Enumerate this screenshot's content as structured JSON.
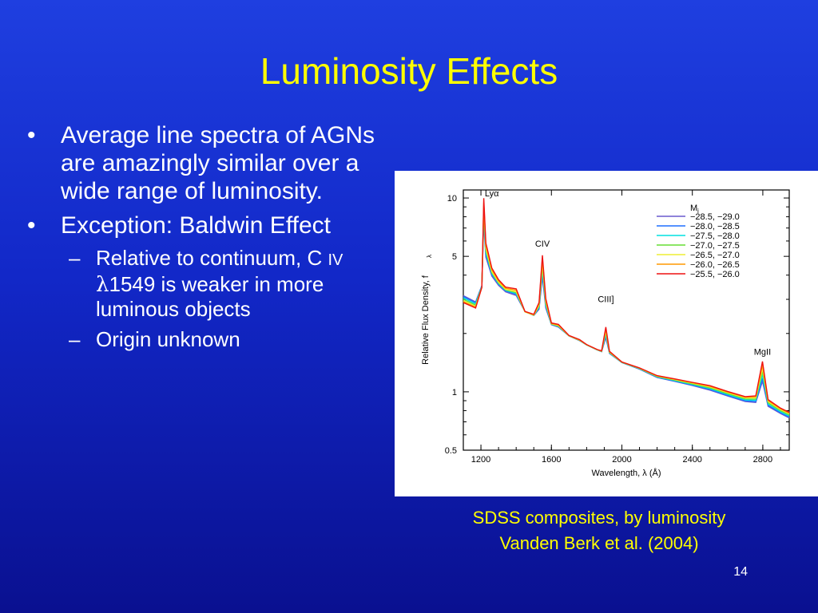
{
  "slide": {
    "title": "Luminosity Effects",
    "page_number": "14"
  },
  "bullets": [
    {
      "text": "Average line spectra of AGNs are amazingly similar over a wide range of luminosity."
    },
    {
      "text": "Exception: Baldwin Effect"
    }
  ],
  "sub_bullets": {
    "relative": {
      "part1": "Relative to continuum, C ",
      "iv": "IV",
      "lambda": "λ",
      "part2": "1549 is weaker in more luminous objects"
    },
    "origin": "Origin unknown"
  },
  "figure": {
    "caption_line1": "SDSS composites, by luminosity",
    "caption_line2": "Vanden Berk et al. (2004)"
  },
  "chart_data": {
    "type": "line",
    "x_scale": "linear",
    "y_scale": "log",
    "xlabel": "Wavelength, λ (Å)",
    "ylabel": "Relative Flux Density, f",
    "ylabel_subscript": "λ",
    "xlim": [
      1100,
      2950
    ],
    "ylim": [
      0.5,
      11
    ],
    "x_ticks": [
      "1200",
      "1600",
      "2000",
      "2400",
      "2800"
    ],
    "y_ticks": [
      "10",
      "5",
      "1",
      "0.5"
    ],
    "line_labels": {
      "lya": "Lyα",
      "civ": "CIV",
      "ciii": "CIII]",
      "mgii": "MgII"
    },
    "legend_title": "M",
    "legend_title_subscript": "i",
    "legend_position": "top-right",
    "base_points": [
      [
        1100,
        3.0
      ],
      [
        1170,
        2.8
      ],
      [
        1205,
        3.5
      ],
      [
        1216,
        9.0
      ],
      [
        1228,
        5.5
      ],
      [
        1240,
        5.0
      ],
      [
        1262,
        4.2
      ],
      [
        1300,
        3.7
      ],
      [
        1340,
        3.4
      ],
      [
        1400,
        3.3
      ],
      [
        1450,
        2.6
      ],
      [
        1500,
        2.5
      ],
      [
        1530,
        2.8
      ],
      [
        1549,
        4.6
      ],
      [
        1568,
        2.9
      ],
      [
        1600,
        2.25
      ],
      [
        1640,
        2.2
      ],
      [
        1700,
        1.95
      ],
      [
        1760,
        1.85
      ],
      [
        1800,
        1.75
      ],
      [
        1860,
        1.65
      ],
      [
        1885,
        1.62
      ],
      [
        1909,
        2.05
      ],
      [
        1930,
        1.6
      ],
      [
        2000,
        1.42
      ],
      [
        2100,
        1.32
      ],
      [
        2200,
        1.2
      ],
      [
        2300,
        1.15
      ],
      [
        2400,
        1.1
      ],
      [
        2500,
        1.05
      ],
      [
        2600,
        0.98
      ],
      [
        2700,
        0.92
      ],
      [
        2760,
        0.92
      ],
      [
        2798,
        1.3
      ],
      [
        2830,
        0.88
      ],
      [
        2900,
        0.8
      ],
      [
        2950,
        0.76
      ]
    ],
    "series": [
      {
        "name": "−28.5, −29.0",
        "color": "#6a5acd",
        "line_scale": 0.7,
        "cont_tilt": -0.08
      },
      {
        "name": "−28.0, −28.5",
        "color": "#1e6fff",
        "line_scale": 0.78,
        "cont_tilt": -0.06
      },
      {
        "name": "−27.5, −28.0",
        "color": "#00e0e0",
        "line_scale": 0.86,
        "cont_tilt": -0.03
      },
      {
        "name": "−27.0, −27.5",
        "color": "#66dd33",
        "line_scale": 0.94,
        "cont_tilt": 0.0
      },
      {
        "name": "−26.5, −27.0",
        "color": "#eeee33",
        "line_scale": 1.02,
        "cont_tilt": 0.03
      },
      {
        "name": "−26.0, −26.5",
        "color": "#ff9900",
        "line_scale": 1.12,
        "cont_tilt": 0.05
      },
      {
        "name": "−25.5, −26.0",
        "color": "#ee1111",
        "line_scale": 1.22,
        "cont_tilt": 0.07
      }
    ]
  }
}
